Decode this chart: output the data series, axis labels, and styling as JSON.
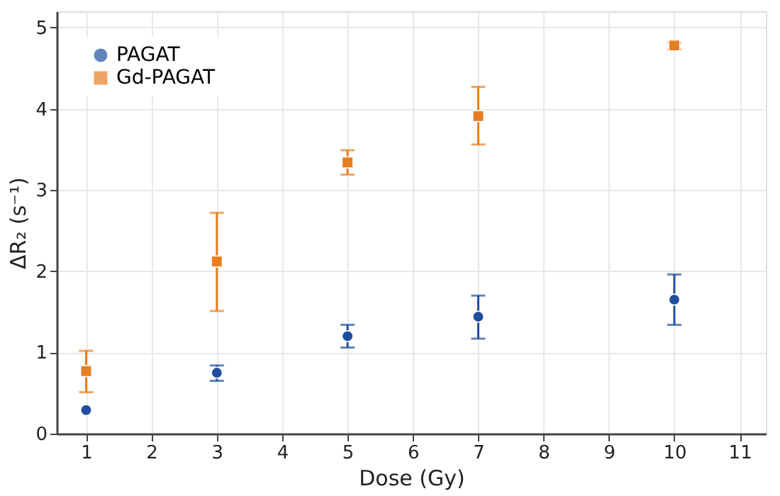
{
  "chart_data": {
    "type": "scatter",
    "xlabel": "Dose (Gy)",
    "ylabel": "ΔR₂ (s⁻¹)",
    "x": [
      1,
      3,
      5,
      7,
      10
    ],
    "series": [
      {
        "name": "PAGAT",
        "color": "#1f4e9e",
        "marker": "circle",
        "values": [
          0.29,
          0.75,
          1.2,
          1.44,
          1.65
        ],
        "errors": [
          null,
          [
            0.65,
            0.84
          ],
          [
            1.06,
            1.34
          ],
          [
            1.17,
            1.7
          ],
          [
            1.34,
            1.96
          ]
        ]
      },
      {
        "name": "Gd-PAGAT",
        "color": "#e67e22",
        "marker": "square",
        "values": [
          0.77,
          2.12,
          3.34,
          3.91,
          4.78
        ],
        "errors": [
          [
            0.51,
            1.02
          ],
          [
            1.51,
            2.72
          ],
          [
            3.19,
            3.49
          ],
          [
            3.56,
            4.27
          ],
          [
            4.73,
            4.81
          ]
        ]
      }
    ],
    "xlim": [
      0.55,
      11.4
    ],
    "ylim": [
      0,
      5.2
    ],
    "xticks": [
      1,
      2,
      3,
      4,
      5,
      6,
      7,
      8,
      9,
      10,
      11
    ],
    "yticks": [
      0,
      1,
      2,
      3,
      4,
      5
    ],
    "grid": true,
    "legend": "top left"
  }
}
